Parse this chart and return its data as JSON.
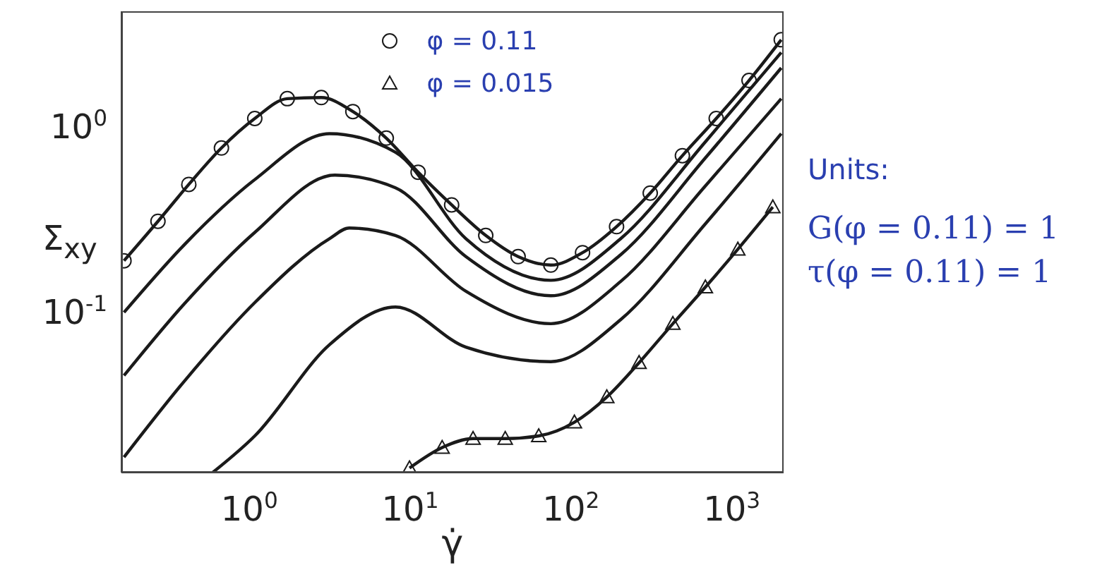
{
  "chart_data": {
    "type": "line",
    "xlabel": "γ̇",
    "ylabel": "Σ$_{xy}$",
    "log": "xy",
    "grid": false,
    "legend": "top",
    "line_style": "solid",
    "marker": "none",
    "xlim": [
      0.16,
      2100
    ],
    "ylim": [
      0.0137,
      4.2
    ],
    "xticks": [
      {
        "value": 1,
        "label": "10$^{0}$"
      },
      {
        "value": 10,
        "label": "10$^{1}$"
      },
      {
        "value": 100,
        "label": "10$^{2}$"
      },
      {
        "value": 1000,
        "label": "10$^{3}$"
      }
    ],
    "yticks": [
      {
        "value": 0.1,
        "label": "10$^{-1}$"
      },
      {
        "value": 1,
        "label": "10$^{0}$"
      }
    ],
    "series": [
      {
        "name": "φ = 0.11",
        "color": "#1a1a1a",
        "marker": "circle",
        "x": [
          0.166,
          0.27,
          0.42,
          0.67,
          1.08,
          1.72,
          2.8,
          4.4,
          7.1,
          11.2,
          18.1,
          29.5,
          46.9,
          74.9,
          118,
          192,
          311,
          493,
          800,
          1280,
          2030
        ],
        "values": [
          0.19,
          0.31,
          0.49,
          0.77,
          1.11,
          1.42,
          1.44,
          1.21,
          0.87,
          0.57,
          0.38,
          0.26,
          0.2,
          0.18,
          0.21,
          0.29,
          0.44,
          0.7,
          1.11,
          1.78,
          2.95
        ]
      },
      {
        "color": "#1a1a1a",
        "x": [
          0.166,
          0.4,
          1.08,
          3.15,
          8.1,
          22.2,
          74.9,
          204,
          684,
          2030
        ],
        "values": [
          0.1,
          0.235,
          0.52,
          0.92,
          0.73,
          0.25,
          0.149,
          0.25,
          0.83,
          2.52
        ]
      },
      {
        "color": "#1a1a1a",
        "x": [
          0.166,
          0.4,
          1.08,
          3.4,
          8.1,
          22.2,
          74.9,
          204,
          684,
          2030
        ],
        "values": [
          0.0457,
          0.113,
          0.27,
          0.55,
          0.47,
          0.2,
          0.123,
          0.205,
          0.68,
          2.08
        ]
      },
      {
        "color": "#1a1a1a",
        "x": [
          0.166,
          0.4,
          1.08,
          3.15,
          4.18,
          8.1,
          22.2,
          74.9,
          204,
          684,
          2030
        ],
        "values": [
          0.0166,
          0.0433,
          0.113,
          0.25,
          0.285,
          0.26,
          0.13,
          0.087,
          0.147,
          0.48,
          1.42
        ]
      },
      {
        "color": "#1a1a1a",
        "x": [
          0.59,
          1.08,
          3.15,
          8.1,
          22.2,
          74.9,
          204,
          684,
          2030
        ],
        "values": [
          0.0137,
          0.0216,
          0.067,
          0.107,
          0.065,
          0.0543,
          0.0916,
          0.3,
          0.92
        ]
      },
      {
        "name": "φ = 0.015",
        "color": "#1a1a1a",
        "marker": "triangle",
        "x": [
          9.9,
          15.8,
          24.6,
          39,
          63,
          105,
          167,
          265,
          430,
          685,
          1090,
          1800
        ],
        "values": [
          0.0145,
          0.0187,
          0.0209,
          0.0209,
          0.0216,
          0.0256,
          0.035,
          0.0536,
          0.087,
          0.137,
          0.219,
          0.37
        ]
      }
    ],
    "annotations": [
      "Units:",
      "G(φ = 0.11) = 1",
      "τ(φ = 0.11) = 1"
    ]
  }
}
